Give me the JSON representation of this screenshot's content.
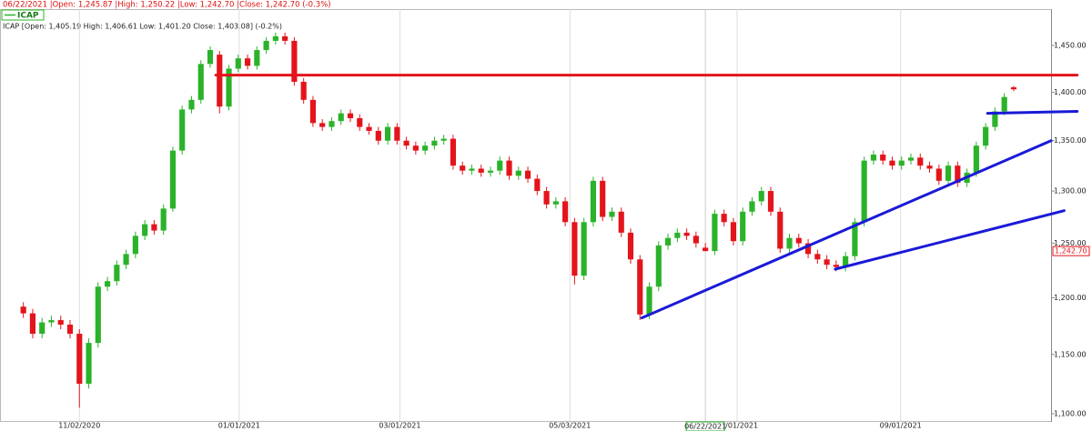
{
  "chart_data": {
    "type": "candlestick",
    "header": "06/22/2021 |Open: 1,245.87 |High: 1,250.22 |Low: 1,242.70 |Close: 1,242.70 (-0.3%)",
    "info": "ICAP [Open: 1,405.19  High: 1,406.61  Low: 1,401.20  Close: 1,403.08] (-0.2%)",
    "log_scale": true,
    "xgrid": true,
    "up_color": "#2ab32a",
    "down_color": "#e3141b",
    "xlim": [
      -2.5,
      110
    ],
    "ylim": [
      1094,
      1485
    ],
    "xticks": [
      {
        "value": 6,
        "label": "11/02/2020"
      },
      {
        "value": 23.1,
        "label": "01/01/2021"
      },
      {
        "value": 40.3,
        "label": "03/01/2021"
      },
      {
        "value": 58.5,
        "label": "05/03/2021"
      },
      {
        "value": 76.4,
        "label": "07/01/2021"
      },
      {
        "value": 93.9,
        "label": "09/01/2021"
      }
    ],
    "yticks": [
      {
        "value": 1100,
        "label": "1,100.00"
      },
      {
        "value": 1150,
        "label": "1,150.00"
      },
      {
        "value": 1200,
        "label": "1,200.00"
      },
      {
        "value": 1250,
        "label": "1,250.00"
      },
      {
        "value": 1300,
        "label": "1,300.00"
      },
      {
        "value": 1350,
        "label": "1,350.00"
      },
      {
        "value": 1400,
        "label": "1,400.00"
      },
      {
        "value": 1450,
        "label": "1,450.00"
      }
    ],
    "crosshair": {
      "value": 73,
      "label": "06/22/2021"
    },
    "last_price": {
      "value": 1242.7,
      "label": "1,242.70"
    },
    "series": [
      {
        "name": "ICAP",
        "color": "#2ab32a",
        "open": [
          1192,
          1186,
          1168,
          1178,
          1180,
          1176,
          1168,
          1125,
          1160,
          1210,
          1215,
          1230,
          1240,
          1257,
          1268,
          1262,
          1283,
          1340,
          1382,
          1392,
          1430,
          1440,
          1385,
          1425,
          1436,
          1428,
          1445,
          1455,
          1460,
          1455,
          1411,
          1392,
          1368,
          1364,
          1370,
          1378,
          1373,
          1364,
          1360,
          1350,
          1364,
          1350,
          1345,
          1340,
          1345,
          1350,
          1352,
          1325,
          1320,
          1322,
          1318,
          1320,
          1330,
          1315,
          1320,
          1312,
          1300,
          1287,
          1290,
          1270,
          1220,
          1270,
          1310,
          1275,
          1280,
          1260,
          1235,
          1185,
          1210,
          1248,
          1255,
          1260,
          1257,
          1245.87,
          1242.7,
          1278,
          1270,
          1252,
          1280,
          1290,
          1300,
          1280,
          1245,
          1255,
          1250,
          1240,
          1235,
          1230,
          1228,
          1238,
          1270,
          1330,
          1336,
          1330,
          1325,
          1330,
          1333,
          1325,
          1322,
          1310,
          1325,
          1308,
          1318,
          1345,
          1364,
          1380,
          1405.19
        ],
        "high": [
          1196,
          1190,
          1182,
          1184,
          1184,
          1180,
          1172,
          1164,
          1214,
          1219,
          1234,
          1244,
          1261,
          1272,
          1272,
          1287,
          1344,
          1386,
          1396,
          1434,
          1449,
          1444,
          1429,
          1440,
          1440,
          1449,
          1459,
          1464,
          1464,
          1459,
          1415,
          1396,
          1372,
          1374,
          1382,
          1382,
          1377,
          1368,
          1364,
          1368,
          1368,
          1354,
          1349,
          1349,
          1354,
          1356,
          1356,
          1329,
          1326,
          1326,
          1324,
          1334,
          1334,
          1324,
          1324,
          1316,
          1304,
          1294,
          1294,
          1274,
          1274,
          1314,
          1314,
          1284,
          1284,
          1264,
          1239,
          1214,
          1252,
          1259,
          1264,
          1264,
          1261,
          1250.22,
          1282,
          1282,
          1274,
          1284,
          1294,
          1304,
          1304,
          1284,
          1259,
          1259,
          1254,
          1244,
          1239,
          1234,
          1242,
          1274,
          1334,
          1340,
          1340,
          1334,
          1334,
          1337,
          1337,
          1329,
          1326,
          1329,
          1329,
          1322,
          1349,
          1368,
          1384,
          1399,
          1406.61
        ],
        "low": [
          1182,
          1164,
          1164,
          1174,
          1172,
          1164,
          1105,
          1121,
          1156,
          1206,
          1211,
          1226,
          1236,
          1253,
          1258,
          1258,
          1280,
          1336,
          1378,
          1388,
          1426,
          1378,
          1381,
          1421,
          1424,
          1424,
          1441,
          1451,
          1451,
          1407,
          1388,
          1364,
          1360,
          1360,
          1366,
          1369,
          1360,
          1356,
          1346,
          1346,
          1346,
          1341,
          1336,
          1336,
          1341,
          1346,
          1321,
          1316,
          1316,
          1314,
          1314,
          1316,
          1311,
          1311,
          1308,
          1296,
          1283,
          1283,
          1266,
          1212,
          1216,
          1266,
          1271,
          1271,
          1256,
          1231,
          1180,
          1181,
          1206,
          1244,
          1251,
          1253,
          1246,
          1242.7,
          1239,
          1266,
          1248,
          1248,
          1276,
          1286,
          1276,
          1241,
          1241,
          1246,
          1236,
          1231,
          1226,
          1224,
          1224,
          1234,
          1266,
          1326,
          1326,
          1321,
          1321,
          1326,
          1321,
          1318,
          1306,
          1306,
          1304,
          1304,
          1314,
          1341,
          1360,
          1376,
          1401.2
        ],
        "close": [
          1186,
          1168,
          1178,
          1180,
          1176,
          1168,
          1125,
          1160,
          1210,
          1215,
          1230,
          1240,
          1257,
          1268,
          1262,
          1283,
          1340,
          1382,
          1392,
          1430,
          1445,
          1385,
          1425,
          1436,
          1428,
          1445,
          1455,
          1460,
          1455,
          1411,
          1392,
          1368,
          1364,
          1370,
          1378,
          1373,
          1364,
          1360,
          1350,
          1364,
          1350,
          1345,
          1340,
          1345,
          1350,
          1352,
          1325,
          1320,
          1322,
          1318,
          1320,
          1330,
          1315,
          1320,
          1312,
          1300,
          1287,
          1290,
          1270,
          1220,
          1270,
          1310,
          1275,
          1280,
          1260,
          1235,
          1185,
          1210,
          1248,
          1255,
          1260,
          1257,
          1250,
          1242.7,
          1278,
          1270,
          1252,
          1280,
          1290,
          1300,
          1280,
          1245,
          1255,
          1250,
          1240,
          1235,
          1230,
          1228,
          1238,
          1270,
          1330,
          1336,
          1330,
          1325,
          1330,
          1333,
          1325,
          1322,
          1310,
          1325,
          1308,
          1318,
          1345,
          1364,
          1380,
          1395,
          1403.08
        ]
      }
    ],
    "trendlines": [
      {
        "color": "#e3141b",
        "x": [
          20.6,
          112.8
        ],
        "y": [
          1418,
          1418
        ]
      },
      {
        "color": "#1a1ad8",
        "x": [
          66.2,
          110
        ],
        "y": [
          1182,
          1350
        ]
      },
      {
        "color": "#1a1ad8",
        "x": [
          86.9,
          111.4
        ],
        "y": [
          1226,
          1281
        ]
      },
      {
        "color": "#1a1ad8",
        "x": [
          103.2,
          112.8
        ],
        "y": [
          1378,
          1380
        ]
      }
    ]
  }
}
